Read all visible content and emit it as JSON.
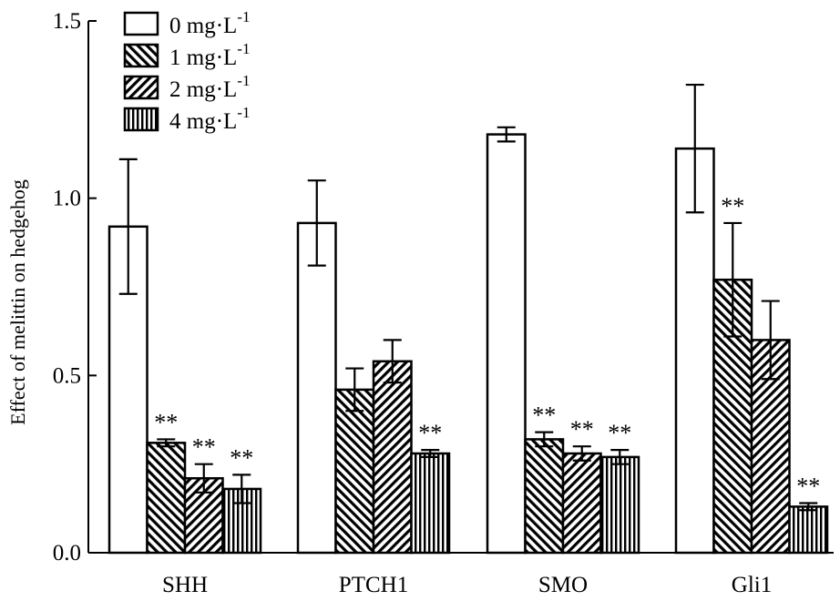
{
  "chart_data": {
    "type": "bar",
    "title": "",
    "xlabel": "",
    "ylabel": "Effect of melittin on hedgehog",
    "ylim": [
      0,
      1.5
    ],
    "yticks": [
      "0.0",
      "0.5",
      "1.0",
      "1.5"
    ],
    "grid": false,
    "legend_position": "top-left",
    "categories": [
      "SHH",
      "PTCH1",
      "SMO",
      "Gli1"
    ],
    "series": [
      {
        "name": "0 mg·L",
        "unit_sup": "-1",
        "pattern": "open",
        "values": [
          0.92,
          0.93,
          1.18,
          1.14
        ],
        "errors": [
          0.19,
          0.12,
          0.02,
          0.18
        ],
        "annotations": [
          "",
          "",
          "",
          ""
        ]
      },
      {
        "name": "1 mg·L",
        "unit_sup": "-1",
        "pattern": "diag-down",
        "values": [
          0.31,
          0.46,
          0.32,
          0.77
        ],
        "errors": [
          0.01,
          0.06,
          0.02,
          0.16
        ],
        "annotations": [
          "**",
          "",
          "**",
          "**"
        ]
      },
      {
        "name": "2 mg·L",
        "unit_sup": "-1",
        "pattern": "diag-up",
        "values": [
          0.21,
          0.54,
          0.28,
          0.6
        ],
        "errors": [
          0.04,
          0.06,
          0.02,
          0.11
        ],
        "annotations": [
          "**",
          "",
          "**",
          ""
        ]
      },
      {
        "name": "4 mg·L",
        "unit_sup": "-1",
        "pattern": "vertical",
        "values": [
          0.18,
          0.28,
          0.27,
          0.13
        ],
        "errors": [
          0.04,
          0.01,
          0.02,
          0.01
        ],
        "annotations": [
          "**",
          "**",
          "**",
          "**"
        ]
      }
    ]
  }
}
